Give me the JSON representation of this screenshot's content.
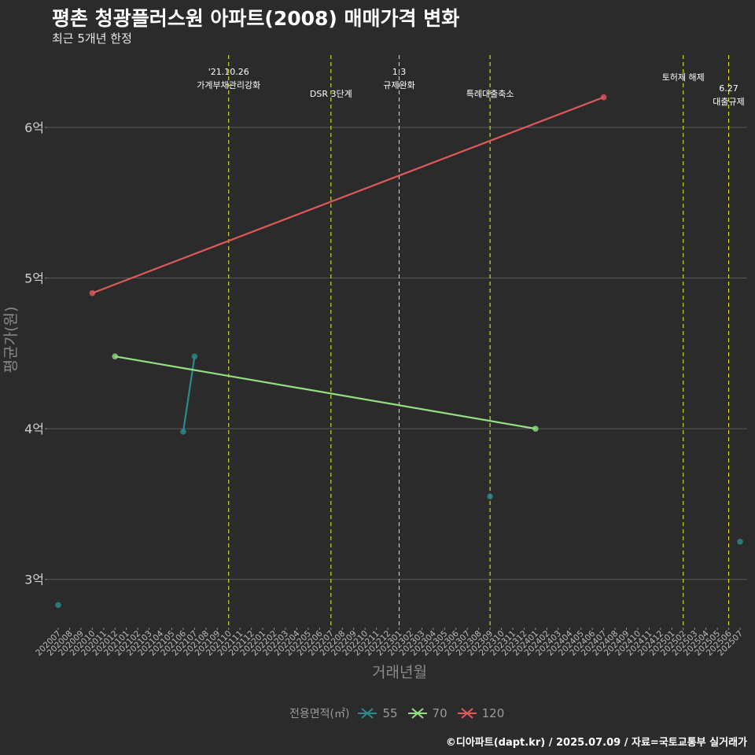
{
  "header": {
    "title": "평촌 청광플러스원 아파트(2008) 매매가격 변화",
    "subtitle": "최근 5개년 한정"
  },
  "caption": "©디아파트(dapt.kr) / 2025.07.09 / 자료=국토교통부 실거래가",
  "legend": {
    "title": "전용면적(㎡)",
    "items": [
      {
        "label": "55",
        "color": "#2a8a8c"
      },
      {
        "label": "70",
        "color": "#93e084"
      },
      {
        "label": "120",
        "color": "#e05a5a"
      }
    ]
  },
  "chart_data": {
    "type": "line",
    "title": "평촌 청광플러스원 아파트(2008) 매매가격 변화",
    "xlabel": "거래년월",
    "ylabel": "평균가(원)",
    "x_categories": [
      "202007",
      "202008",
      "202009",
      "202010",
      "202011",
      "202012",
      "202101",
      "202102",
      "202103",
      "202104",
      "202105",
      "202106",
      "202107",
      "202108",
      "202109",
      "202110",
      "202111",
      "202112",
      "202201",
      "202202",
      "202203",
      "202204",
      "202205",
      "202206",
      "202207",
      "202208",
      "202209",
      "202210",
      "202211",
      "202212",
      "202301",
      "202302",
      "202303",
      "202304",
      "202305",
      "202306",
      "202307",
      "202308",
      "202309",
      "202310",
      "202311",
      "202312",
      "202401",
      "202402",
      "202403",
      "202404",
      "202405",
      "202406",
      "202407",
      "202408",
      "202409",
      "202410",
      "202411",
      "202412",
      "202501",
      "202502",
      "202503",
      "202504",
      "202505",
      "202506",
      "202507"
    ],
    "ylim": [
      2.68,
      6.48
    ],
    "y_ticks": [
      {
        "value": 3,
        "label": "3억"
      },
      {
        "value": 4,
        "label": "4억"
      },
      {
        "value": 5,
        "label": "5억"
      },
      {
        "value": 6,
        "label": "6억"
      }
    ],
    "series": [
      {
        "name": "55",
        "color": "#2a8a8c",
        "points": [
          {
            "x": "202007",
            "y": 2.83,
            "connected": false
          },
          {
            "x": "202106",
            "y": 3.98,
            "connected": true
          },
          {
            "x": "202107",
            "y": 4.48,
            "connected": true
          },
          {
            "x": "202309",
            "y": 3.55,
            "connected": false
          },
          {
            "x": "202507",
            "y": 3.25,
            "connected": false
          }
        ]
      },
      {
        "name": "70",
        "color": "#93e084",
        "points": [
          {
            "x": "202012",
            "y": 4.48,
            "connected": true
          },
          {
            "x": "202401",
            "y": 4.0,
            "connected": true
          }
        ]
      },
      {
        "name": "120",
        "color": "#e05a5a",
        "points": [
          {
            "x": "202010",
            "y": 4.9,
            "connected": true
          },
          {
            "x": "202407",
            "y": 6.2,
            "connected": true
          }
        ]
      }
    ],
    "events": [
      {
        "x": "202110",
        "lines": [
          "'21.10.26",
          "가계부채관리강화"
        ],
        "level": 0
      },
      {
        "x": "202207",
        "lines": [
          "DSR 3단계"
        ],
        "level": 2
      },
      {
        "x": "202301",
        "lines": [
          "1.3",
          "규제완화"
        ],
        "level": 0
      },
      {
        "x": "202309",
        "lines": [
          "특례대출축소"
        ],
        "level": 2
      },
      {
        "x": "202502",
        "lines": [
          "토허제 해제"
        ],
        "level": 0.5
      },
      {
        "x": "202506",
        "lines": [
          "6.27",
          "대출규제"
        ],
        "level": 1.5
      }
    ]
  }
}
